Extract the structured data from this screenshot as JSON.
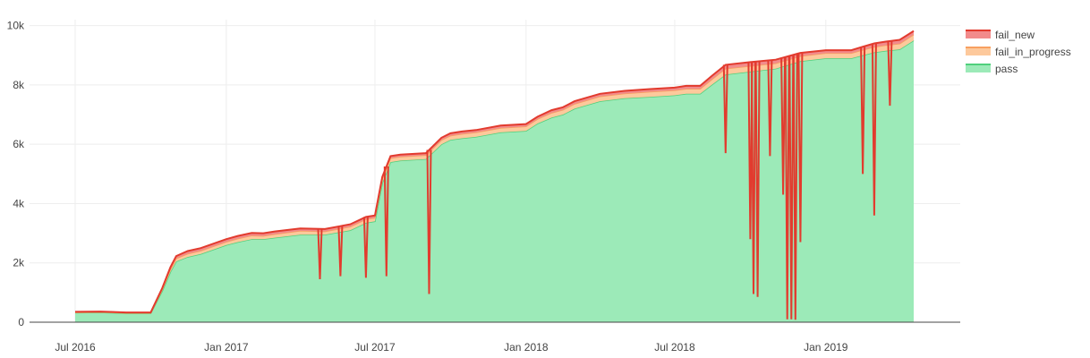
{
  "chart_data": {
    "type": "area",
    "stacked": true,
    "title": "",
    "xlabel": "",
    "ylabel": "",
    "xlim": [
      "2016-07-01",
      "2019-04-18"
    ],
    "ylim": [
      0,
      10200
    ],
    "grid": true,
    "legend_position": "top-right",
    "x_ticks": [
      "2016-07-01",
      "2017-01-01",
      "2017-07-01",
      "2018-01-01",
      "2018-07-01",
      "2019-01-01"
    ],
    "x_tick_labels": [
      "Jul 2016",
      "Jan 2017",
      "Jul 2017",
      "Jan 2018",
      "Jul 2018",
      "Jan 2019"
    ],
    "y_ticks": [
      0,
      2000,
      4000,
      6000,
      8000,
      10000
    ],
    "y_tick_labels": [
      "0",
      "2k",
      "4k",
      "6k",
      "8k",
      "10k"
    ],
    "series": [
      {
        "name": "pass",
        "color": "#9ceab8",
        "line_color": "#4fd07c"
      },
      {
        "name": "fail_in_progress",
        "color": "#fdc99c",
        "line_color": "#f8a060"
      },
      {
        "name": "fail_new",
        "color": "#f28b8b",
        "line_color": "#e23b2e"
      }
    ],
    "x": [
      "2016-07-01",
      "2016-08-01",
      "2016-09-01",
      "2016-10-01",
      "2016-10-15",
      "2016-10-25",
      "2016-11-01",
      "2016-11-15",
      "2016-12-01",
      "2017-01-01",
      "2017-01-15",
      "2017-02-01",
      "2017-02-15",
      "2017-03-01",
      "2017-04-01",
      "2017-05-01",
      "2017-06-01",
      "2017-06-20",
      "2017-07-01",
      "2017-07-10",
      "2017-07-20",
      "2017-08-01",
      "2017-09-01",
      "2017-09-20",
      "2017-10-01",
      "2017-10-15",
      "2017-11-01",
      "2017-12-01",
      "2018-01-01",
      "2018-01-15",
      "2018-02-01",
      "2018-02-15",
      "2018-03-01",
      "2018-04-01",
      "2018-05-01",
      "2018-06-01",
      "2018-07-01",
      "2018-07-15",
      "2018-08-01",
      "2018-08-15",
      "2018-09-01",
      "2018-10-01",
      "2018-11-01",
      "2018-12-01",
      "2019-01-01",
      "2019-01-15",
      "2019-02-01",
      "2019-02-15",
      "2019-03-01",
      "2019-03-15",
      "2019-04-01",
      "2019-04-18"
    ],
    "values": {
      "pass": [
        320,
        330,
        300,
        300,
        1050,
        1700,
        2050,
        2200,
        2300,
        2600,
        2700,
        2800,
        2800,
        2850,
        2950,
        2950,
        3100,
        3350,
        3400,
        4700,
        5400,
        5450,
        5500,
        6000,
        6150,
        6200,
        6250,
        6400,
        6450,
        6700,
        6900,
        7000,
        7200,
        7450,
        7550,
        7600,
        7650,
        7700,
        7700,
        8000,
        8350,
        8450,
        8550,
        8800,
        8900,
        8900,
        8900,
        9000,
        9100,
        9150,
        9200,
        9500
      ],
      "fail_in_progress": [
        10,
        10,
        10,
        10,
        50,
        80,
        100,
        110,
        110,
        110,
        120,
        120,
        110,
        120,
        130,
        110,
        120,
        120,
        120,
        120,
        130,
        130,
        130,
        140,
        140,
        150,
        150,
        150,
        150,
        150,
        160,
        160,
        160,
        160,
        160,
        170,
        170,
        170,
        170,
        180,
        200,
        190,
        180,
        170,
        170,
        170,
        170,
        180,
        180,
        190,
        190,
        200
      ],
      "fail_new": [
        20,
        20,
        20,
        20,
        50,
        80,
        80,
        90,
        90,
        90,
        90,
        90,
        90,
        90,
        80,
        80,
        80,
        80,
        80,
        80,
        70,
        70,
        70,
        80,
        80,
        80,
        80,
        80,
        80,
        80,
        90,
        90,
        90,
        90,
        90,
        90,
        90,
        100,
        100,
        120,
        130,
        130,
        120,
        110,
        100,
        100,
        100,
        110,
        120,
        120,
        130,
        120
      ]
    },
    "dips": [
      {
        "date": "2017-04-25",
        "value": 1450
      },
      {
        "date": "2017-05-20",
        "value": 1550
      },
      {
        "date": "2017-06-20",
        "value": 1500
      },
      {
        "date": "2017-07-15",
        "value": 1550
      },
      {
        "date": "2017-09-05",
        "value": 950
      },
      {
        "date": "2018-09-01",
        "value": 5700
      },
      {
        "date": "2018-10-01",
        "value": 2800
      },
      {
        "date": "2018-10-05",
        "value": 950
      },
      {
        "date": "2018-10-10",
        "value": 850
      },
      {
        "date": "2018-10-25",
        "value": 5600
      },
      {
        "date": "2018-11-10",
        "value": 4300
      },
      {
        "date": "2018-11-15",
        "value": 100
      },
      {
        "date": "2018-11-20",
        "value": 100
      },
      {
        "date": "2018-11-25",
        "value": 80
      },
      {
        "date": "2018-12-01",
        "value": 2700
      },
      {
        "date": "2019-02-15",
        "value": 5000
      },
      {
        "date": "2019-03-01",
        "value": 3600
      },
      {
        "date": "2019-03-20",
        "value": 7300
      }
    ]
  }
}
